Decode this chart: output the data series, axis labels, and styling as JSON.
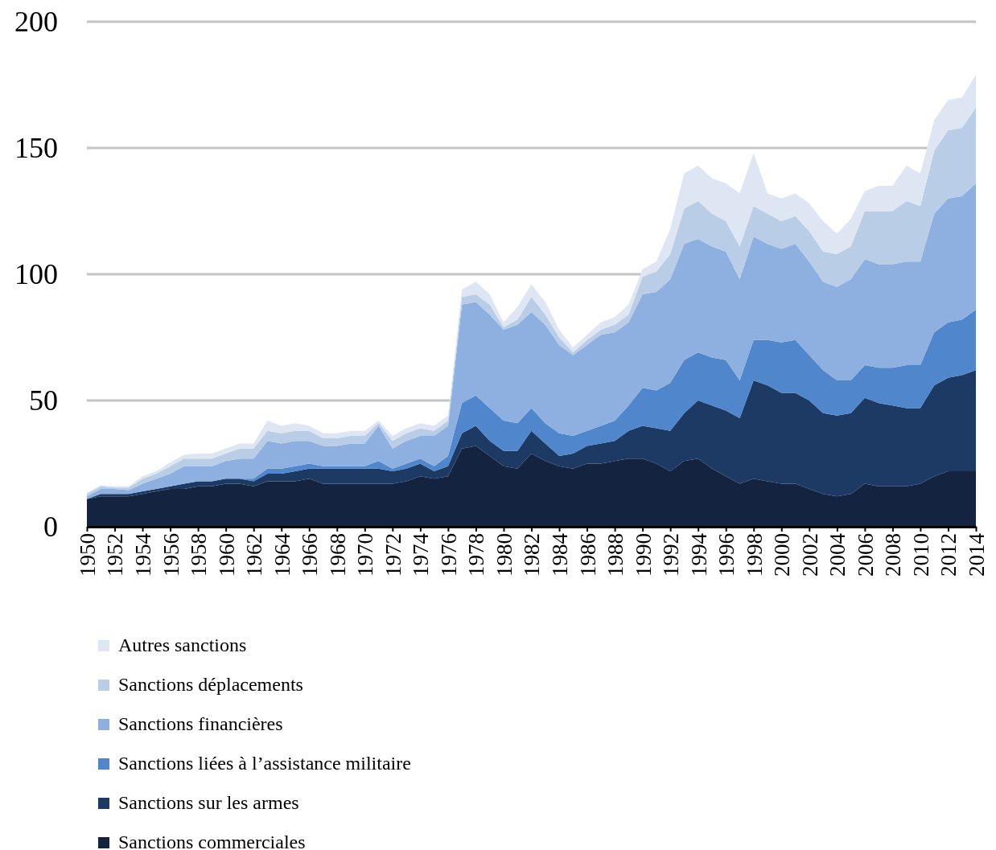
{
  "chart_data": {
    "type": "area",
    "stacked": true,
    "x": [
      1950,
      1951,
      1952,
      1953,
      1954,
      1955,
      1956,
      1957,
      1958,
      1959,
      1960,
      1961,
      1962,
      1963,
      1964,
      1965,
      1966,
      1967,
      1968,
      1969,
      1970,
      1971,
      1972,
      1973,
      1974,
      1975,
      1976,
      1977,
      1978,
      1979,
      1980,
      1981,
      1982,
      1983,
      1984,
      1985,
      1986,
      1987,
      1988,
      1989,
      1990,
      1991,
      1992,
      1993,
      1994,
      1995,
      1996,
      1997,
      1998,
      1999,
      2000,
      2001,
      2002,
      2003,
      2004,
      2005,
      2006,
      2007,
      2008,
      2009,
      2010,
      2011,
      2012,
      2013,
      2014
    ],
    "series": [
      {
        "name": "Sanctions commerciales",
        "color": "#14233f",
        "values": [
          11,
          12,
          12,
          12,
          13,
          14,
          15,
          15,
          16,
          16,
          17,
          17,
          16,
          18,
          18,
          18,
          19,
          17,
          17,
          17,
          17,
          17,
          17,
          18,
          20,
          19,
          20,
          31,
          32,
          28,
          24,
          23,
          29,
          26,
          24,
          23,
          25,
          25,
          26,
          27,
          27,
          25,
          22,
          26,
          27,
          23,
          20,
          17,
          19,
          18,
          17,
          17,
          15,
          13,
          12,
          13,
          17,
          16,
          16,
          16,
          17,
          20,
          22,
          22,
          22
        ]
      },
      {
        "name": "Sanctions sur les armes",
        "color": "#1c3a64",
        "values": [
          0,
          1,
          1,
          1,
          1,
          1,
          1,
          2,
          2,
          2,
          2,
          2,
          2,
          3,
          3,
          4,
          4,
          6,
          6,
          6,
          6,
          6,
          5,
          5,
          5,
          3,
          4,
          6,
          8,
          6,
          6,
          7,
          9,
          7,
          4,
          6,
          7,
          8,
          8,
          11,
          13,
          14,
          16,
          19,
          23,
          25,
          26,
          26,
          39,
          38,
          36,
          36,
          35,
          32,
          32,
          32,
          34,
          33,
          32,
          31,
          30,
          36,
          37,
          38,
          40
        ]
      },
      {
        "name": "Sanctions liées à l’assistance militaire",
        "color": "#4f86cc",
        "values": [
          0,
          0,
          0,
          0,
          0,
          0,
          0,
          0,
          0,
          0,
          0,
          0,
          1,
          2,
          2,
          2,
          2,
          1,
          1,
          1,
          1,
          3,
          1,
          2,
          2,
          2,
          4,
          12,
          12,
          13,
          12,
          11,
          9,
          8,
          9,
          7,
          6,
          7,
          8,
          10,
          15,
          15,
          19,
          21,
          19,
          19,
          20,
          15,
          16,
          18,
          20,
          21,
          18,
          17,
          14,
          13,
          13,
          14,
          15,
          17,
          17,
          21,
          22,
          22,
          24
        ]
      },
      {
        "name": "Sanctions financières",
        "color": "#8db0e0",
        "values": [
          1,
          2,
          2,
          1.5,
          3,
          4,
          5,
          7,
          6,
          6,
          7,
          8,
          8,
          11,
          10,
          10,
          9,
          8,
          8,
          9,
          9,
          14,
          8,
          9,
          9,
          12,
          12,
          39,
          37,
          37,
          36,
          39,
          38,
          39,
          35,
          32,
          34,
          36,
          35,
          33,
          37,
          39,
          41,
          46,
          45,
          44,
          43,
          40,
          41,
          38,
          37,
          38,
          37,
          35,
          37,
          40,
          42,
          41,
          41,
          41,
          41,
          47,
          49,
          49,
          50
        ]
      },
      {
        "name": "Sanctions déplacements",
        "color": "#b9cde6",
        "values": [
          1,
          1,
          0.5,
          1,
          2,
          2,
          3,
          3,
          3,
          3,
          3,
          4,
          4,
          4,
          4,
          4,
          4,
          3,
          3,
          3,
          3,
          1,
          3,
          3,
          3,
          2,
          2,
          3,
          3,
          4,
          1,
          2,
          6,
          4,
          3,
          1,
          2,
          2,
          3,
          3,
          7,
          8,
          10,
          14,
          15,
          13,
          12,
          13,
          12,
          12,
          11,
          11,
          12,
          12,
          13,
          13,
          19,
          21,
          21,
          24,
          22,
          25,
          27,
          27,
          30
        ]
      },
      {
        "name": "Autres sanctions",
        "color": "#dde6f2",
        "values": [
          0.5,
          0.5,
          0.5,
          0.5,
          1,
          1,
          1.5,
          1.5,
          2,
          2,
          2,
          2,
          2,
          4,
          3,
          3,
          2,
          2,
          2,
          2,
          2,
          1,
          2,
          2,
          2,
          2,
          2,
          3,
          5,
          4,
          2,
          5,
          5,
          5,
          3,
          2,
          2,
          3,
          3,
          4,
          3,
          4,
          10,
          14,
          14,
          14,
          15,
          21,
          21,
          8,
          9,
          9,
          11,
          12,
          8,
          11,
          8,
          10,
          10,
          14,
          13,
          12,
          12,
          12,
          13
        ]
      }
    ],
    "xlim": [
      1950,
      2014
    ],
    "xticks": [
      1950,
      1952,
      1954,
      1956,
      1958,
      1960,
      1962,
      1964,
      1966,
      1968,
      1970,
      1972,
      1974,
      1976,
      1978,
      1980,
      1982,
      1984,
      1986,
      1988,
      1990,
      1992,
      1994,
      1996,
      1998,
      2000,
      2002,
      2004,
      2006,
      2008,
      2010,
      2012,
      2014
    ],
    "ylim": [
      0,
      200
    ],
    "yticks": [
      0,
      50,
      100,
      150,
      200
    ],
    "grid": "y",
    "legend": "bottom"
  }
}
